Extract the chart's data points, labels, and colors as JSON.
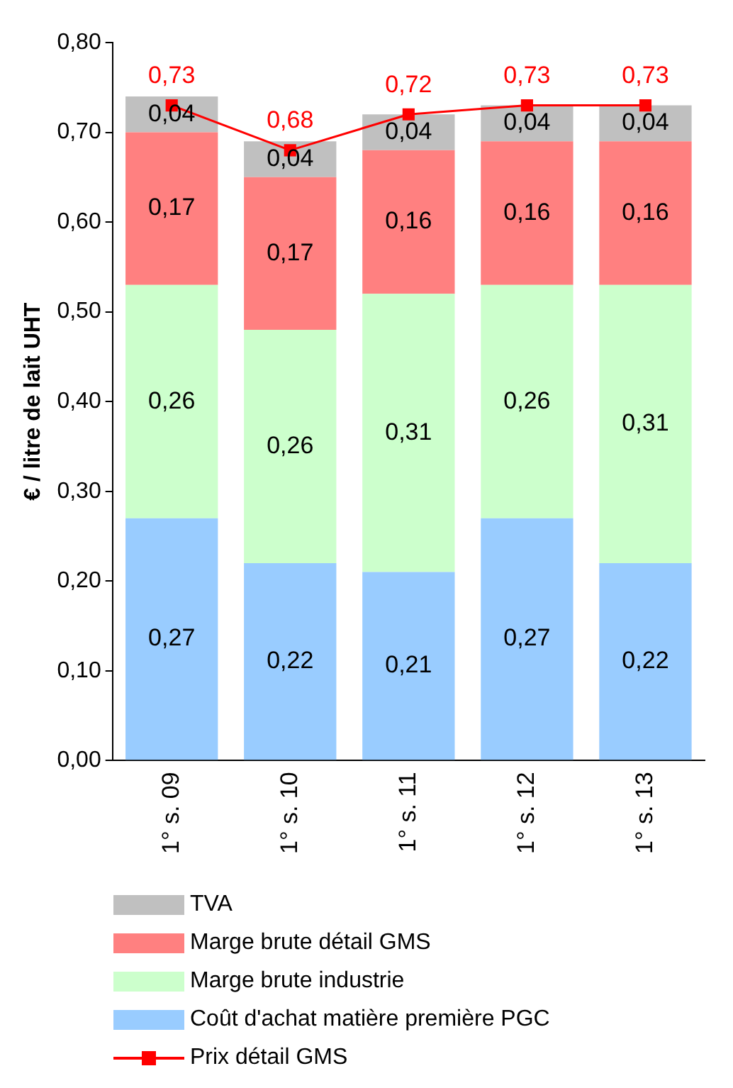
{
  "chart_data": {
    "type": "bar",
    "stacked": true,
    "ylabel": "€ / litre de lait UHT",
    "categories": [
      "1° s. 09",
      "1° s. 10",
      "1° s. 11",
      "1° s. 12",
      "1° s. 13"
    ],
    "ylim": [
      0,
      0.8
    ],
    "yticks": [
      {
        "value": 0,
        "label": "0,00"
      },
      {
        "value": 0.1,
        "label": "0,10"
      },
      {
        "value": 0.2,
        "label": "0,20"
      },
      {
        "value": 0.3,
        "label": "0,30"
      },
      {
        "value": 0.4,
        "label": "0,40"
      },
      {
        "value": 0.5,
        "label": "0,50"
      },
      {
        "value": 0.6,
        "label": "0,60"
      },
      {
        "value": 0.7,
        "label": "0,70"
      },
      {
        "value": 0.8,
        "label": "0,80"
      }
    ],
    "grid": false,
    "legend": "bottom",
    "series": [
      {
        "name": "Coût d'achat matière première PGC",
        "color": "#99ccff",
        "values": [
          0.27,
          0.22,
          0.21,
          0.27,
          0.22
        ],
        "value_labels": [
          "0,27",
          "0,22",
          "0,21",
          "0,27",
          "0,22"
        ]
      },
      {
        "name": "Marge brute industrie",
        "color": "#ccffcc",
        "values": [
          0.26,
          0.26,
          0.31,
          0.26,
          0.31
        ],
        "value_labels": [
          "0,26",
          "0,26",
          "0,31",
          "0,26",
          "0,31"
        ]
      },
      {
        "name": "Marge brute détail GMS",
        "color": "#ff8080",
        "values": [
          0.17,
          0.17,
          0.16,
          0.16,
          0.16
        ],
        "value_labels": [
          "0,17",
          "0,17",
          "0,16",
          "0,16",
          "0,16"
        ]
      },
      {
        "name": "TVA",
        "color": "#c0c0c0",
        "values": [
          0.04,
          0.04,
          0.04,
          0.04,
          0.04
        ],
        "value_labels": [
          "0,04",
          "0,04",
          "0,04",
          "0,04",
          "0,04"
        ]
      },
      {
        "name": "Prix détail GMS",
        "type": "line",
        "color": "#ff0000",
        "marker": "square",
        "values": [
          0.73,
          0.68,
          0.72,
          0.73,
          0.73
        ],
        "value_labels": [
          "0,73",
          "0,68",
          "0,72",
          "0,73",
          "0,73"
        ]
      }
    ]
  }
}
